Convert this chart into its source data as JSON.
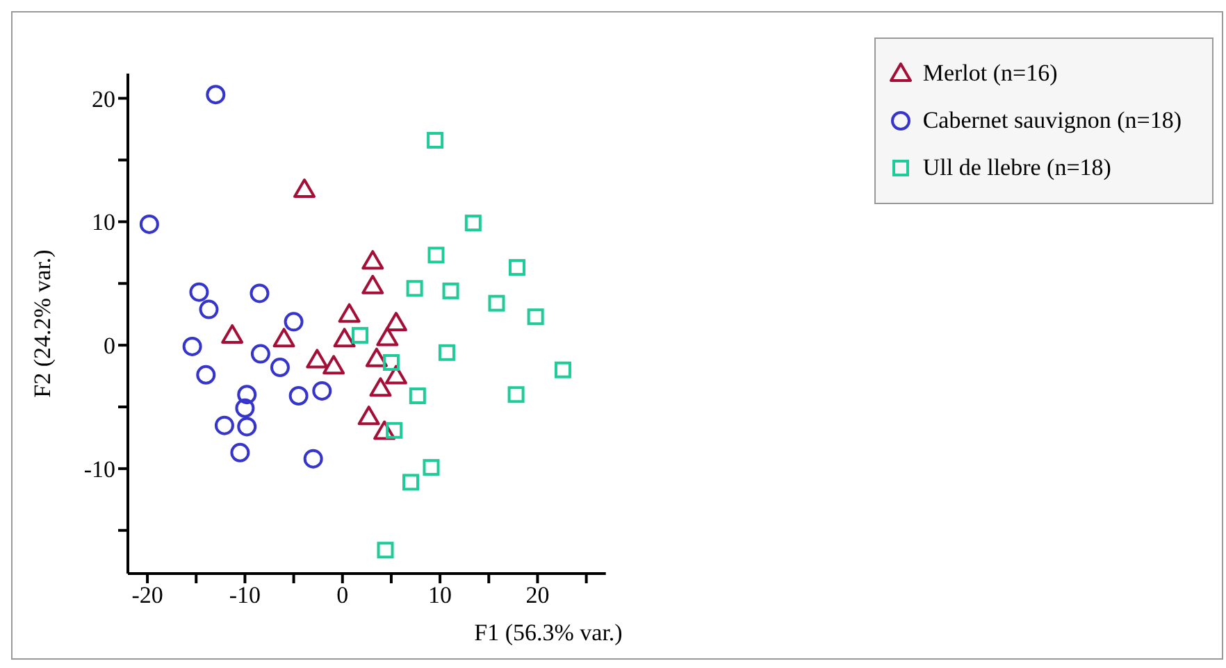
{
  "chart_data": {
    "type": "scatter",
    "xlabel": "F1 (56.3% var.)",
    "ylabel": "F2 (24.2% var.)",
    "xlim": [
      -22,
      27
    ],
    "ylim": [
      -18.5,
      22
    ],
    "xticks": [
      -20,
      {
        "value": -15,
        "label": null
      },
      -10,
      {
        "value": -5,
        "label": null
      },
      0,
      {
        "value": 5,
        "label": null
      },
      10,
      {
        "value": 15,
        "label": null
      },
      20,
      {
        "value": 25,
        "label": null
      }
    ],
    "yticks": [
      {
        "value": -15,
        "label": null
      },
      -10,
      {
        "value": -5,
        "label": null
      },
      0,
      {
        "value": 5,
        "label": null
      },
      10,
      {
        "value": 15,
        "label": null
      },
      20
    ],
    "grid": false,
    "legend": "top right",
    "series": [
      {
        "name": "Merlot (n=16)",
        "color": "#a50f37",
        "marker": "triangle",
        "x": [
          -11.3,
          -6.0,
          -3.9,
          -2.6,
          -0.9,
          0.2,
          0.7,
          3.1,
          3.1,
          3.5,
          3.9,
          2.7,
          4.3,
          4.6,
          5.5,
          5.5
        ],
        "values": [
          0.8,
          0.5,
          12.6,
          -1.2,
          -1.7,
          0.5,
          2.5,
          6.8,
          4.8,
          -1.1,
          -3.5,
          -5.8,
          -7.0,
          0.6,
          1.8,
          -2.5
        ]
      },
      {
        "name": "Cabernet sauvignon (n=18)",
        "color": "#3535cc",
        "marker": "circle",
        "x": [
          -19.8,
          -13.0,
          -14.7,
          -13.7,
          -15.4,
          -14.0,
          -12.1,
          -10.5,
          -9.8,
          -10.0,
          -9.8,
          -8.5,
          -8.4,
          -6.4,
          -5.0,
          -4.5,
          -2.1,
          -3.0
        ],
        "values": [
          9.8,
          20.3,
          4.3,
          2.9,
          -0.1,
          -2.4,
          -6.5,
          -8.7,
          -4.0,
          -5.1,
          -6.6,
          4.2,
          -0.7,
          -1.8,
          1.9,
          -4.1,
          -3.7,
          -9.2
        ]
      },
      {
        "name": "Ull de llebre (n=18)",
        "color": "#1fcc99",
        "marker": "square",
        "x": [
          1.8,
          5.0,
          5.3,
          4.4,
          7.4,
          7.7,
          7.0,
          9.1,
          9.5,
          9.6,
          11.1,
          10.7,
          13.4,
          15.8,
          17.9,
          17.8,
          19.8,
          22.6
        ],
        "values": [
          0.8,
          -1.4,
          -6.9,
          -16.6,
          4.6,
          -4.1,
          -11.1,
          -9.9,
          16.6,
          7.3,
          4.4,
          -0.6,
          9.9,
          3.4,
          6.3,
          -4.0,
          2.3,
          -2.0
        ]
      }
    ]
  }
}
